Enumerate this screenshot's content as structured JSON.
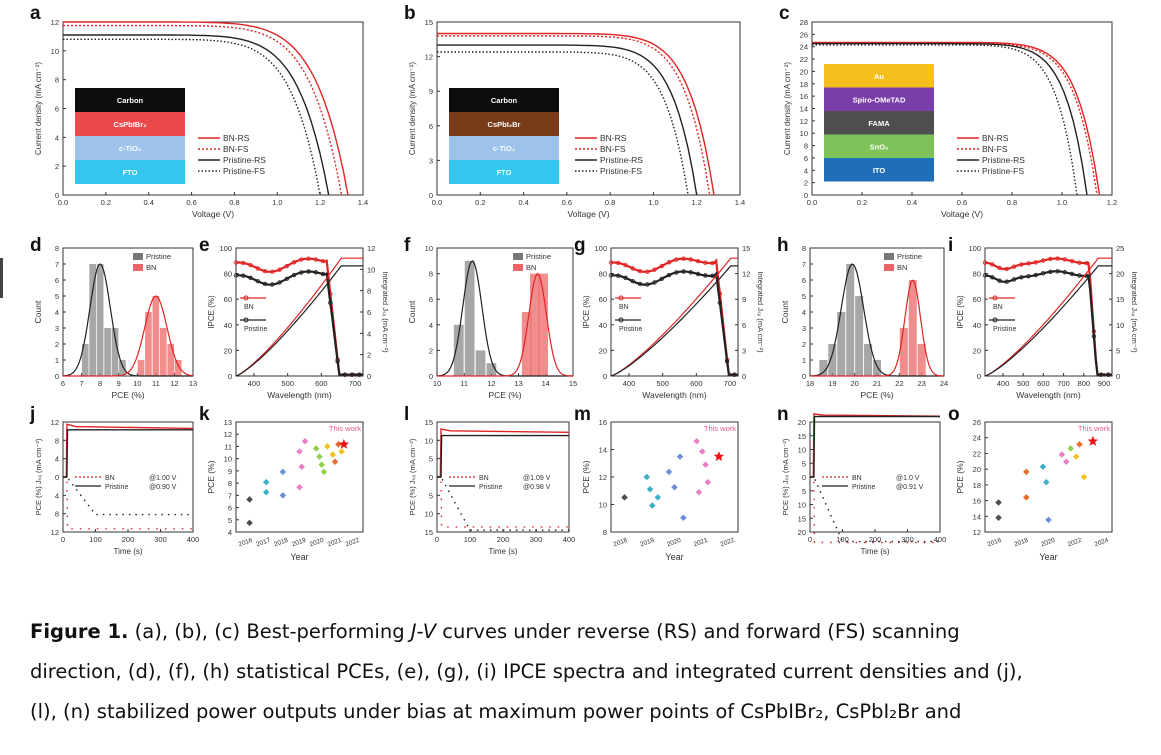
{
  "panel_letters": [
    "a",
    "b",
    "c",
    "d",
    "e",
    "f",
    "g",
    "h",
    "i",
    "j",
    "k",
    "l",
    "m",
    "n",
    "o"
  ],
  "jv_panels": [
    {
      "letter": "a",
      "ylabel": "Current density (mA cm⁻²)",
      "xlabel": "Voltage (V)",
      "xticks": [
        "0.0",
        "0.2",
        "0.4",
        "0.6",
        "0.8",
        "1.0",
        "1.2",
        "1.4"
      ],
      "yticks": [
        "0",
        "2",
        "4",
        "6",
        "8",
        "10",
        "12"
      ],
      "stack": [
        {
          "label": "Carbon",
          "color": "#0d0d0d",
          "text": "#ffffff"
        },
        {
          "label": "CsPbIBr₂",
          "color": "#ea4a4a",
          "text": "#ffffff"
        },
        {
          "label": "c-TiO₂",
          "color": "#9ec3ea",
          "text": "#ffffff"
        },
        {
          "label": "FTO",
          "color": "#35c5f1",
          "text": "#ffffff"
        }
      ],
      "legend": [
        "BN-RS",
        "BN-FS",
        "Pristine-RS",
        "Pristine-FS"
      ]
    },
    {
      "letter": "b",
      "ylabel": "Current density (mA cm⁻²)",
      "xlabel": "Voltage (V)",
      "xticks": [
        "0.0",
        "0.2",
        "0.4",
        "0.6",
        "0.8",
        "1.0",
        "1.2",
        "1.4"
      ],
      "yticks": [
        "0",
        "3",
        "6",
        "9",
        "12",
        "15"
      ],
      "stack": [
        {
          "label": "Carbon",
          "color": "#0d0d0d",
          "text": "#ffffff"
        },
        {
          "label": "CsPbI₂Br",
          "color": "#7a3b18",
          "text": "#ffffff"
        },
        {
          "label": "c-TiO₂",
          "color": "#9ec3ea",
          "text": "#ffffff"
        },
        {
          "label": "FTO",
          "color": "#35c5f1",
          "text": "#ffffff"
        }
      ],
      "legend": [
        "BN-RS",
        "BN-FS",
        "Pristine-RS",
        "Pristine-FS"
      ]
    },
    {
      "letter": "c",
      "ylabel": "Current density (mA cm⁻²)",
      "xlabel": "Voltage (V)",
      "xticks": [
        "0.0",
        "0.2",
        "0.4",
        "0.6",
        "0.8",
        "1.0",
        "1.2"
      ],
      "yticks": [
        "0",
        "2",
        "4",
        "6",
        "8",
        "10",
        "12",
        "14",
        "16",
        "18",
        "20",
        "22",
        "24",
        "26",
        "28"
      ],
      "stack": [
        {
          "label": "Au",
          "color": "#f6bf1e",
          "text": "#ffffff"
        },
        {
          "label": "Spiro-OMeTAD",
          "color": "#7a3ea8",
          "text": "#ffffff"
        },
        {
          "label": "FAMA",
          "color": "#4e4e4e",
          "text": "#ffffff"
        },
        {
          "label": "SnO₂",
          "color": "#7fc25a",
          "text": "#ffffff"
        },
        {
          "label": "ITO",
          "color": "#1f6fb8",
          "text": "#ffffff"
        }
      ],
      "legend": [
        "BN-RS",
        "BN-FS",
        "Pristine-RS",
        "Pristine-FS"
      ]
    }
  ],
  "hist_panels": [
    {
      "letter": "d",
      "xlabel": "PCE (%)",
      "ylabel": "Count",
      "xticks": [
        "6",
        "7",
        "8",
        "9",
        "10",
        "11",
        "12",
        "13"
      ],
      "yticks": [
        "0",
        "1",
        "2",
        "3",
        "4",
        "5",
        "6",
        "7",
        "8"
      ],
      "legend": [
        "Pristine",
        "BN"
      ]
    },
    {
      "letter": "f",
      "xlabel": "PCE (%)",
      "ylabel": "Count",
      "xticks": [
        "10",
        "11",
        "12",
        "13",
        "14",
        "15"
      ],
      "yticks": [
        "0",
        "2",
        "4",
        "6",
        "8",
        "10"
      ],
      "legend": [
        "Pristine",
        "BN"
      ]
    },
    {
      "letter": "h",
      "xlabel": "PCE (%)",
      "ylabel": "Count",
      "xticks": [
        "18",
        "19",
        "20",
        "21",
        "22",
        "23",
        "24"
      ],
      "yticks": [
        "0",
        "1",
        "2",
        "3",
        "4",
        "5",
        "6",
        "7",
        "8"
      ],
      "legend": [
        "Pristine",
        "BN"
      ]
    }
  ],
  "ipce_panels": [
    {
      "letter": "e",
      "xlabel": "Wavelength (nm)",
      "ylabel": "IPCE (%)",
      "y2label": "Integrated Jₛₓ (mA cm⁻²)",
      "xticks": [
        "400",
        "500",
        "600",
        "700"
      ],
      "yticks": [
        "0",
        "20",
        "40",
        "60",
        "80",
        "100"
      ],
      "y2ticks": [
        "0",
        "2",
        "4",
        "6",
        "8",
        "10",
        "12"
      ],
      "legend": [
        "BN",
        "Pristine"
      ]
    },
    {
      "letter": "g",
      "xlabel": "Wavelength (nm)",
      "ylabel": "IPCE (%)",
      "y2label": "Integrated Jₛₓ (mA cm⁻²)",
      "xticks": [
        "400",
        "500",
        "600",
        "700"
      ],
      "yticks": [
        "0",
        "20",
        "40",
        "60",
        "80",
        "100"
      ],
      "y2ticks": [
        "0",
        "3",
        "6",
        "9",
        "12",
        "15"
      ],
      "legend": [
        "BN",
        "Pristine"
      ]
    },
    {
      "letter": "i",
      "xlabel": "Wavelength (nm)",
      "ylabel": "IPCE (%)",
      "y2label": "Integrated Jₛₓ (mA cm⁻²)",
      "xticks": [
        "400",
        "500",
        "600",
        "700",
        "800",
        "900"
      ],
      "yticks": [
        "0",
        "20",
        "40",
        "60",
        "80",
        "100"
      ],
      "y2ticks": [
        "0",
        "5",
        "10",
        "15",
        "20",
        "25"
      ],
      "legend": [
        "BN",
        "Pristine"
      ]
    }
  ],
  "spo_panels": [
    {
      "letter": "j",
      "xlabel": "Time (s)",
      "ylabel": "PCE (%)  Jₛₓ (mA cm⁻²)",
      "xticks": [
        "0",
        "100",
        "200",
        "300",
        "400"
      ],
      "yticks": [
        "12",
        "8",
        "4",
        "0",
        "4",
        "8",
        "12"
      ],
      "legend": [
        {
          "name": "BN",
          "bias": "@1.00 V"
        },
        {
          "name": "Pristine",
          "bias": "@0.90 V"
        }
      ]
    },
    {
      "letter": "l",
      "xlabel": "Time (s)",
      "ylabel": "PCE (%)  Jₛₓ (mA cm⁻²)",
      "xticks": [
        "0",
        "100",
        "200",
        "300",
        "400"
      ],
      "yticks": [
        "15",
        "10",
        "5",
        "0",
        "5",
        "10",
        "15"
      ],
      "legend": [
        {
          "name": "BN",
          "bias": "@1.09 V"
        },
        {
          "name": "Pristine",
          "bias": "@0.98 V"
        }
      ]
    },
    {
      "letter": "n",
      "xlabel": "Time (s)",
      "ylabel": "PCE (%)  Jₛₓ (mA cm⁻²)",
      "xticks": [
        "0",
        "100",
        "200",
        "300",
        "400"
      ],
      "yticks": [
        "20",
        "15",
        "10",
        "5",
        "0",
        "5",
        "10",
        "15",
        "20"
      ],
      "legend": [
        {
          "name": "BN",
          "bias": "@1.0 V"
        },
        {
          "name": "Pristine",
          "bias": "@0.91 V"
        }
      ]
    }
  ],
  "scatter_panels": [
    {
      "letter": "k",
      "xlabel": "Year",
      "ylabel": "PCE (%)",
      "yticks": [
        "4",
        "5",
        "6",
        "7",
        "8",
        "9",
        "10",
        "11",
        "12",
        "13"
      ],
      "xticks": [
        "2016",
        "2017",
        "2018",
        "2019",
        "2020",
        "2021",
        "2022"
      ],
      "annotation": "This work"
    },
    {
      "letter": "m",
      "xlabel": "Year",
      "ylabel": "PCE (%)",
      "yticks": [
        "8",
        "10",
        "12",
        "14",
        "16"
      ],
      "xticks": [
        "2018",
        "2019",
        "2020",
        "2021",
        "2022"
      ],
      "annotation": "This work"
    },
    {
      "letter": "o",
      "xlabel": "Year",
      "ylabel": "PCE (%)",
      "yticks": [
        "12",
        "14",
        "16",
        "18",
        "20",
        "22",
        "24",
        "26"
      ],
      "xticks": [
        "2016",
        "2018",
        "2020",
        "2022",
        "2024"
      ],
      "annotation": "This work"
    }
  ],
  "caption": {
    "label": "Figure 1.",
    "line1": " (a), (b), (c) Best-performing ",
    "jv": "J-V",
    "line1b": " curves under reverse (RS) and forward (FS) scanning",
    "line2": "direction, (d), (f), (h) statistical PCEs, (e), (g), (i) IPCE spectra and integrated current densities and (j),",
    "line3": "(l), (n) stabilized power outputs under bias at maximum power points of CsPbIBr₂, CsPbI₂Br and"
  },
  "colors": {
    "red": "#e02424",
    "black": "#222222",
    "gray": "#555555",
    "axis": "#333333"
  },
  "icons": [
    "star-icon"
  ]
}
